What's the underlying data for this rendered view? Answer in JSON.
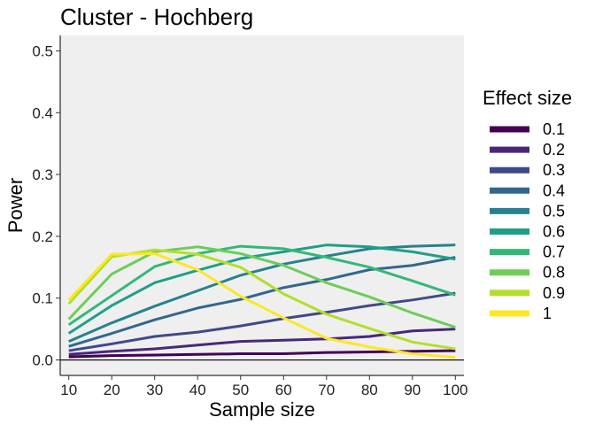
{
  "chart_data": {
    "type": "line",
    "title": "Cluster - Hochberg",
    "xlabel": "Sample size",
    "ylabel": "Power",
    "x": [
      10,
      20,
      30,
      40,
      50,
      60,
      70,
      80,
      90,
      100
    ],
    "xticks": [
      "10",
      "20",
      "30",
      "40",
      "50",
      "60",
      "70",
      "80",
      "90",
      "100"
    ],
    "yticks": [
      "0.0",
      "0.1",
      "0.2",
      "0.3",
      "0.4",
      "0.5"
    ],
    "xlim": [
      8,
      102
    ],
    "ylim": [
      -0.025,
      0.525
    ],
    "grid": false,
    "legend": {
      "title": "Effect size",
      "position": "right"
    },
    "series": [
      {
        "name": "0.1",
        "color": "#440154",
        "values": [
          0.005,
          0.007,
          0.008,
          0.009,
          0.01,
          0.01,
          0.012,
          0.013,
          0.014,
          0.015
        ]
      },
      {
        "name": "0.2",
        "color": "#482878",
        "values": [
          0.009,
          0.014,
          0.018,
          0.024,
          0.03,
          0.032,
          0.034,
          0.038,
          0.047,
          0.05
        ]
      },
      {
        "name": "0.3",
        "color": "#3E4A89",
        "values": [
          0.015,
          0.026,
          0.038,
          0.045,
          0.055,
          0.067,
          0.077,
          0.088,
          0.097,
          0.108
        ]
      },
      {
        "name": "0.4",
        "color": "#31688E",
        "values": [
          0.022,
          0.043,
          0.065,
          0.084,
          0.098,
          0.117,
          0.13,
          0.146,
          0.153,
          0.166
        ]
      },
      {
        "name": "0.5",
        "color": "#26828E",
        "values": [
          0.03,
          0.06,
          0.087,
          0.112,
          0.137,
          0.155,
          0.168,
          0.18,
          0.184,
          0.186
        ]
      },
      {
        "name": "0.6",
        "color": "#1F9E89",
        "values": [
          0.043,
          0.088,
          0.125,
          0.145,
          0.164,
          0.175,
          0.186,
          0.183,
          0.175,
          0.163
        ]
      },
      {
        "name": "0.7",
        "color": "#35B779",
        "values": [
          0.057,
          0.104,
          0.151,
          0.172,
          0.184,
          0.18,
          0.166,
          0.15,
          0.128,
          0.105
        ]
      },
      {
        "name": "0.8",
        "color": "#6DCD59",
        "values": [
          0.066,
          0.139,
          0.175,
          0.183,
          0.172,
          0.153,
          0.125,
          0.102,
          0.076,
          0.053
        ]
      },
      {
        "name": "0.9",
        "color": "#B4DE2C",
        "values": [
          0.091,
          0.167,
          0.178,
          0.171,
          0.15,
          0.107,
          0.074,
          0.051,
          0.029,
          0.018
        ]
      },
      {
        "name": "1",
        "color": "#FDE725",
        "values": [
          0.097,
          0.171,
          0.172,
          0.146,
          0.103,
          0.068,
          0.035,
          0.021,
          0.01,
          0.004
        ]
      }
    ]
  }
}
